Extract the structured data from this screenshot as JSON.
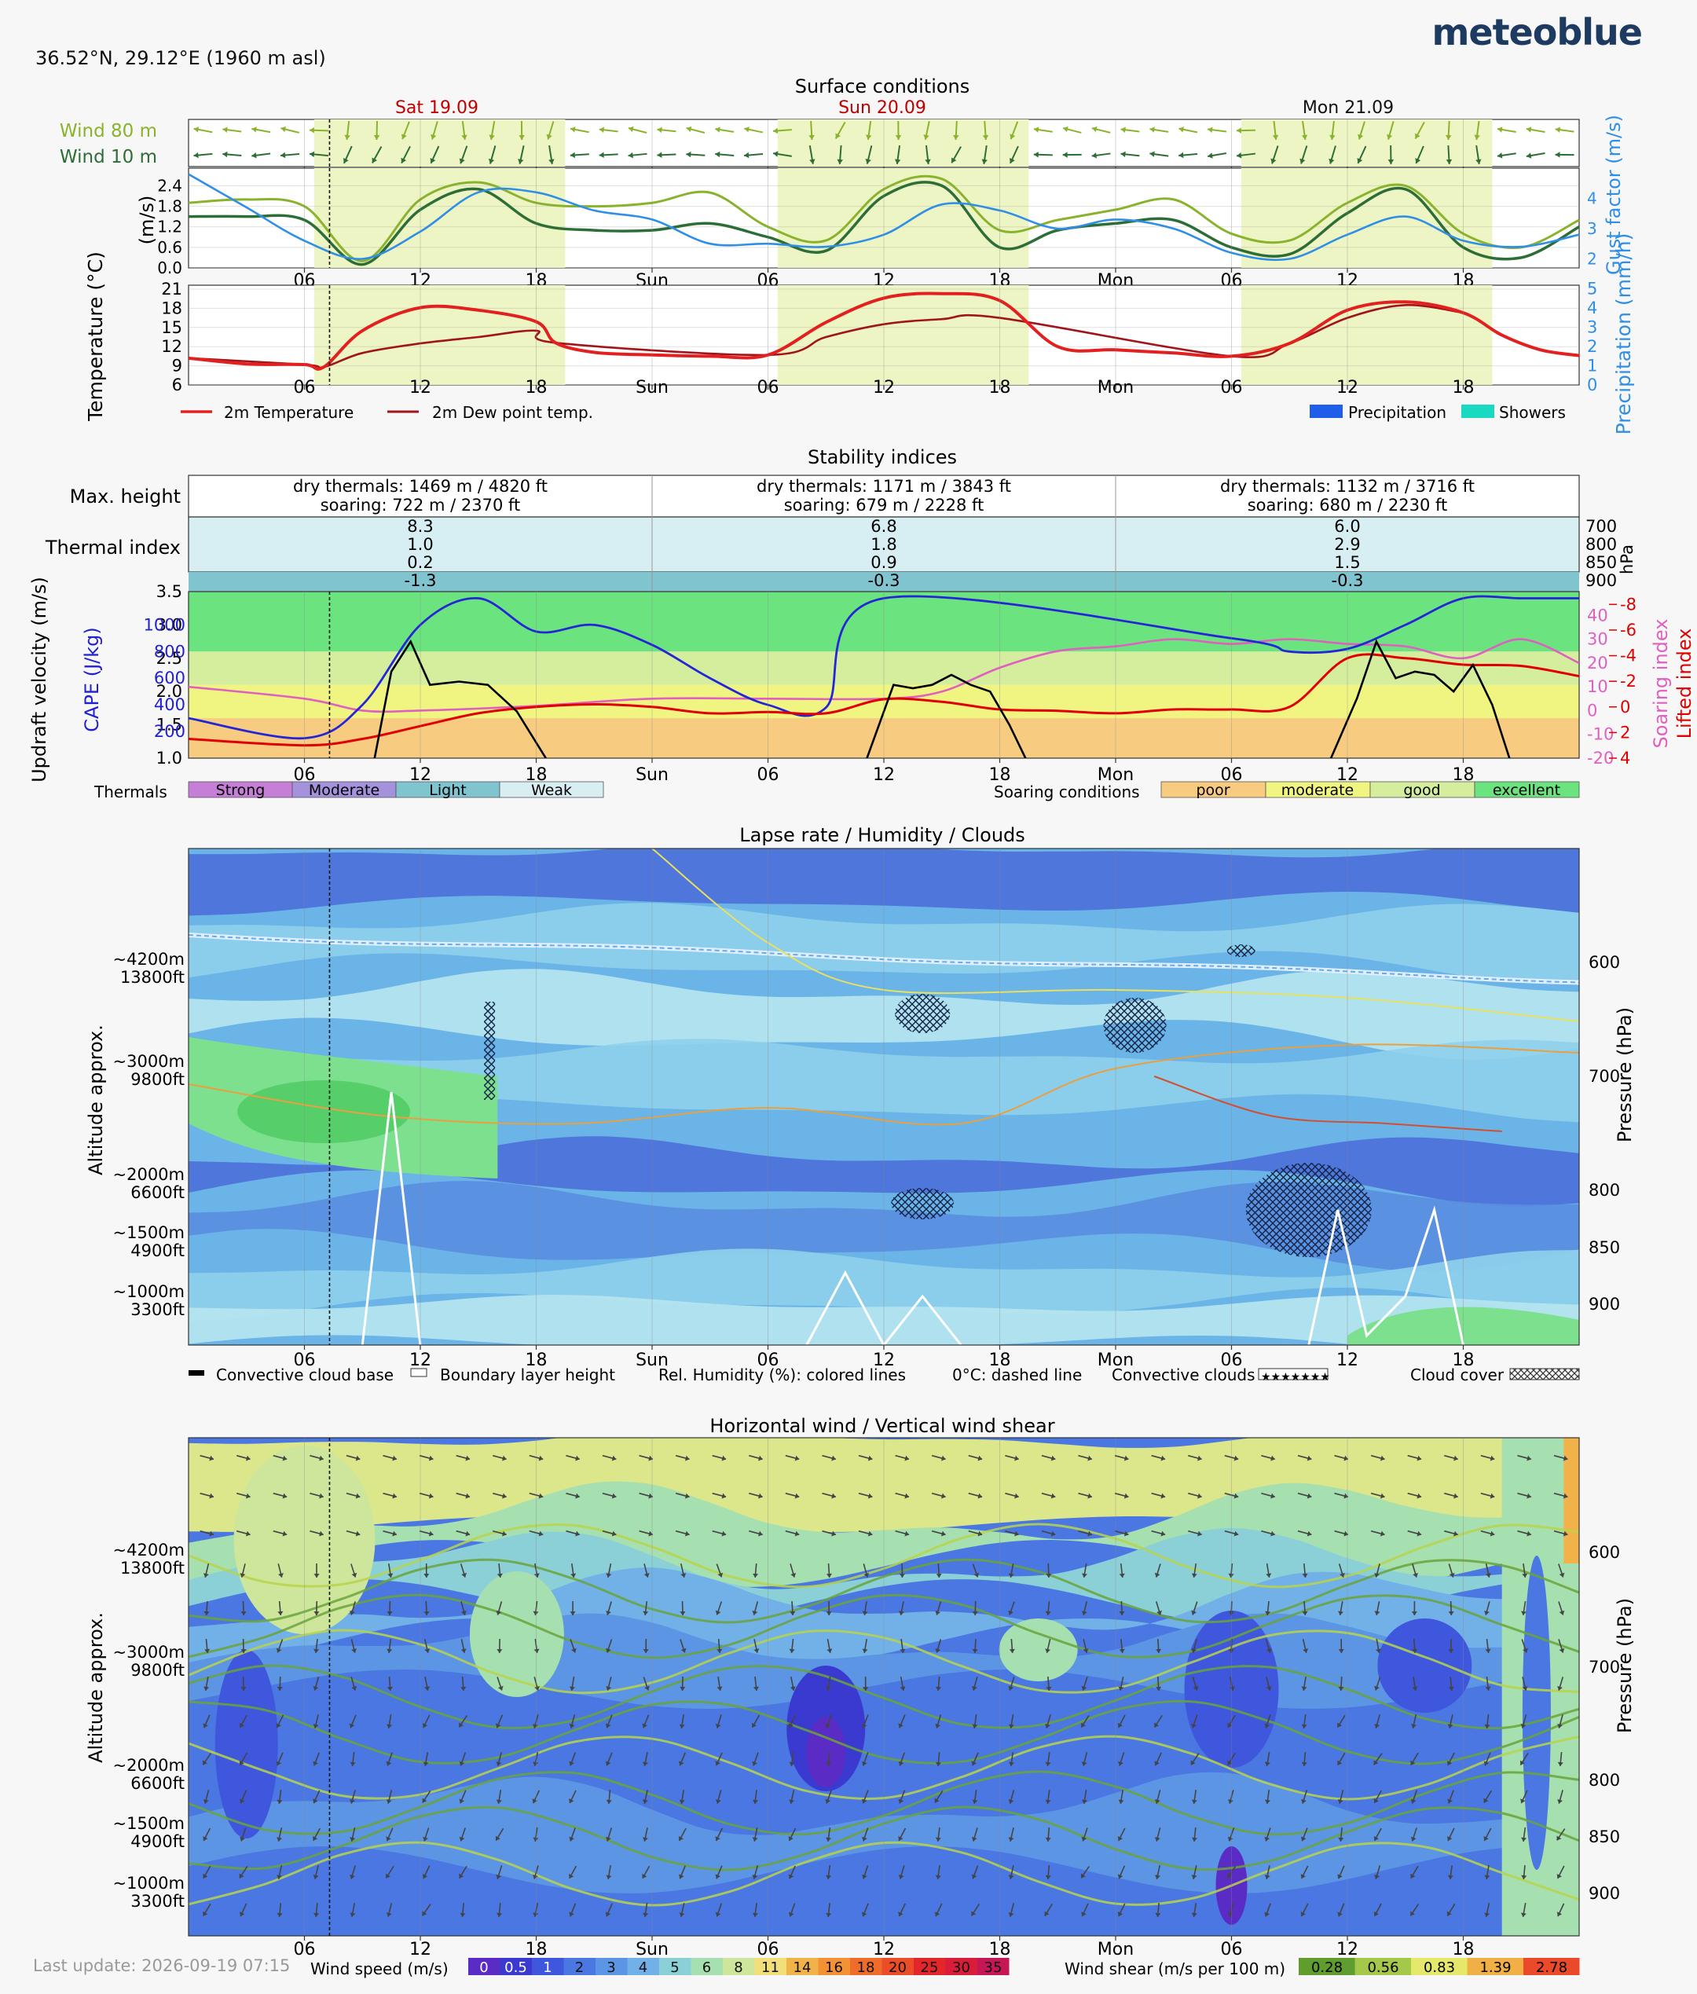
{
  "header": {
    "coordinates": "36.52°N, 29.12°E (1960 m asl)",
    "brand": "meteoblue",
    "last_update": "Last update: 2026-09-19 07:15"
  },
  "time_axis": {
    "ticks": [
      "06",
      "12",
      "18",
      "Sun",
      "06",
      "12",
      "18",
      "Mon",
      "06",
      "12",
      "18"
    ],
    "days": [
      "Sat 19.09",
      "Sun 20.09",
      "Mon 21.09"
    ],
    "day_colors": [
      "#c00000",
      "#c00000",
      "#111111"
    ],
    "hours_total": 72,
    "now_hour": 7.3,
    "daylight": [
      [
        6.5,
        19.5
      ],
      [
        30.5,
        43.5
      ],
      [
        54.5,
        67.5
      ]
    ]
  },
  "surface": {
    "title": "Surface conditions",
    "wind80_label": "Wind 80 m",
    "wind10_label": "Wind 10 m",
    "wind_left_label": "(m/s)",
    "wind_right_label": "Gust factor (m/s)",
    "wind_left_ticks": [
      "0.0",
      "0.6",
      "1.2",
      "1.8",
      "2.4"
    ],
    "wind_right_ticks": [
      "2",
      "3",
      "4"
    ],
    "temp_left_label": "Temperature (°C)",
    "temp_right_label": "Precipitation (mm/h)",
    "temp_ticks": [
      "6",
      "9",
      "12",
      "15",
      "18",
      "21"
    ],
    "precip_ticks": [
      "0",
      "1",
      "2",
      "3",
      "4",
      "5"
    ],
    "legend_temp": "2m Temperature",
    "legend_dew": "2m Dew point temp.",
    "legend_precip": "Precipitation",
    "legend_showers": "Showers",
    "colors": {
      "wind80": "#8ab32d",
      "wind10": "#2d6e36",
      "gust": "#2f8fe6",
      "temp": "#e32020",
      "dew": "#a0141a",
      "daylight": "#eef5c4",
      "precip": "#1e5ee8",
      "showers": "#19d9c0"
    }
  },
  "stability": {
    "title": "Stability indices",
    "max_height_label": "Max. height",
    "thermal_index_label": "Thermal index",
    "days": [
      {
        "dry": "dry thermals: 1469 m / 4820 ft",
        "soar": "soaring: 722 m / 2370 ft",
        "ti": [
          "8.3",
          "1.0",
          "0.2",
          "-1.3"
        ]
      },
      {
        "dry": "dry thermals: 1171 m / 3843 ft",
        "soar": "soaring: 679 m / 2228 ft",
        "ti": [
          "6.8",
          "1.8",
          "0.9",
          "-0.3"
        ]
      },
      {
        "dry": "dry thermals: 1132 m / 3716 ft",
        "soar": "soaring: 680 m / 2230 ft",
        "ti": [
          "6.0",
          "2.9",
          "1.5",
          "-0.3"
        ]
      }
    ],
    "hpa_ticks": [
      "700",
      "800",
      "850",
      "900"
    ],
    "hpa_label": "hPa",
    "updraft_label": "Updraft velocity (m/s)",
    "cape_label": "CAPE (J/kg)",
    "soaring_label": "Soaring index",
    "lifted_label": "Lifted index",
    "updraft_ticks": [
      "1.0",
      "1.5",
      "2.0",
      "2.5",
      "3.0",
      "3.5"
    ],
    "cape_ticks": [
      "200",
      "400",
      "600",
      "800",
      "1000"
    ],
    "soaring_ticks": [
      "-20",
      "-10",
      "0",
      "10",
      "20",
      "30",
      "40"
    ],
    "lifted_ticks": [
      "4",
      "2",
      "0",
      "-2",
      "-4",
      "-6",
      "-8"
    ],
    "thermals_label": "Thermals",
    "thermals_legend": [
      "Strong",
      "Moderate",
      "Light",
      "Weak"
    ],
    "thermals_colors": [
      "#c57fd6",
      "#a592dc",
      "#80c4cf",
      "#d9eef2"
    ],
    "soaring_cond_label": "Soaring conditions",
    "soaring_legend": [
      "poor",
      "moderate",
      "good",
      "excellent"
    ],
    "soaring_colors": [
      "#f7cc80",
      "#f0f581",
      "#d5ee9e",
      "#6be37e"
    ]
  },
  "lapse": {
    "title": "Lapse rate / Humidity / Clouds",
    "alt_label": "Altitude approx.",
    "pressure_label": "Pressure (hPa)",
    "alt_ticks": [
      [
        "~4200m",
        "13800ft"
      ],
      [
        "~3000m",
        "9800ft"
      ],
      [
        "~2000m",
        "6600ft"
      ],
      [
        "~1500m",
        "4900ft"
      ],
      [
        "~1000m",
        "3300ft"
      ]
    ],
    "pressure_ticks": [
      "600",
      "700",
      "800",
      "850",
      "900"
    ],
    "legend": [
      "Convective cloud base",
      "Boundary layer height",
      "Rel. Humidity (%): colored lines",
      "0°C: dashed line",
      "Convective clouds",
      "Cloud cover"
    ]
  },
  "wind": {
    "title": "Horizontal wind / Vertical wind shear",
    "speed_label": "Wind speed (m/s)",
    "shear_label": "Wind shear (m/s per 100 m)",
    "speed_scale": [
      "0",
      "0.5",
      "1",
      "2",
      "3",
      "4",
      "5",
      "6",
      "8",
      "11",
      "14",
      "16",
      "18",
      "20",
      "25",
      "30",
      "35"
    ],
    "speed_colors": [
      "#5a2cc5",
      "#3b3ad0",
      "#3f57dc",
      "#4a77e1",
      "#5c95e4",
      "#71b1e7",
      "#8ad0d6",
      "#a6dfb0",
      "#cde69b",
      "#f1e07a",
      "#f2b24a",
      "#f39133",
      "#ef6c2b",
      "#ea4d27",
      "#e3262a",
      "#d81c3a",
      "#c51656"
    ],
    "shear_scale": [
      "0.28",
      "0.56",
      "0.83",
      "1.39",
      "2.78"
    ],
    "shear_colors": [
      "#5f9d2f",
      "#a6c84a",
      "#e5e86a",
      "#f0b045",
      "#ea4a2a"
    ]
  },
  "chart_data": [
    {
      "type": "line",
      "title": "Surface conditions",
      "x_unit": "hours from Sat 19.09 00:00",
      "series": [
        {
          "name": "Wind 80 m",
          "x": [
            0,
            3,
            6,
            9,
            12,
            15,
            18,
            21,
            24,
            27,
            30,
            33,
            36,
            39,
            42,
            45,
            48,
            51,
            54,
            57,
            60,
            63,
            66,
            69,
            72
          ],
          "values": [
            1.9,
            2.0,
            1.8,
            0.2,
            2.0,
            2.5,
            1.9,
            1.8,
            1.9,
            2.2,
            1.2,
            0.8,
            2.3,
            2.6,
            1.1,
            1.4,
            1.7,
            2.0,
            1.0,
            0.8,
            1.9,
            2.4,
            1.0,
            0.6,
            1.4
          ]
        },
        {
          "name": "Wind 10 m",
          "x": [
            0,
            3,
            6,
            9,
            12,
            15,
            18,
            21,
            24,
            27,
            30,
            33,
            36,
            39,
            42,
            45,
            48,
            51,
            54,
            57,
            60,
            63,
            66,
            69,
            72
          ],
          "values": [
            1.5,
            1.5,
            1.4,
            0.1,
            1.7,
            2.3,
            1.3,
            1.1,
            1.1,
            1.3,
            0.9,
            0.5,
            2.1,
            2.4,
            0.6,
            1.1,
            1.3,
            1.4,
            0.6,
            0.4,
            1.6,
            2.3,
            0.6,
            0.3,
            1.2
          ]
        },
        {
          "name": "Gust factor",
          "x": [
            0,
            3,
            6,
            9,
            12,
            15,
            18,
            21,
            24,
            27,
            30,
            33,
            36,
            39,
            42,
            45,
            48,
            51,
            54,
            57,
            60,
            63,
            66,
            69,
            72
          ],
          "values": [
            4.8,
            3.7,
            2.6,
            2.0,
            2.9,
            4.2,
            4.2,
            3.6,
            3.3,
            2.5,
            2.5,
            2.4,
            2.8,
            3.8,
            3.6,
            3.0,
            3.3,
            3.0,
            2.2,
            2.0,
            2.8,
            3.4,
            2.6,
            2.4,
            2.8
          ]
        },
        {
          "name": "2m Temperature",
          "x": [
            0,
            3,
            6,
            7,
            9,
            12,
            15,
            18,
            19,
            21,
            24,
            27,
            30,
            33,
            36,
            39,
            42,
            45,
            48,
            51,
            54,
            57,
            60,
            63,
            66,
            68,
            70,
            72
          ],
          "values": [
            10.2,
            9.3,
            9.2,
            8.8,
            14.5,
            18.1,
            17.7,
            15.9,
            12.6,
            11.1,
            10.7,
            10.5,
            10.7,
            15.8,
            19.6,
            20.3,
            19.2,
            12.0,
            11.5,
            11.0,
            10.5,
            12.5,
            17.7,
            19.0,
            17.3,
            13.8,
            11.5,
            10.6
          ]
        },
        {
          "name": "2m Dew point temp.",
          "x": [
            0,
            6,
            7,
            9,
            12,
            15,
            18,
            19,
            30,
            33,
            36,
            39,
            42,
            54,
            57,
            60,
            63,
            66
          ],
          "values": [
            10.2,
            9.2,
            8.8,
            11.0,
            12.5,
            13.5,
            14.5,
            12.6,
            10.7,
            13.5,
            15.5,
            16.3,
            16.5,
            10.5,
            12.5,
            16.5,
            18.5,
            17.3
          ]
        }
      ]
    },
    {
      "type": "line",
      "title": "Stability indices",
      "series": [
        {
          "name": "CAPE",
          "x": [
            0,
            6,
            9,
            12,
            15,
            18,
            21,
            24,
            27,
            30,
            33,
            36,
            54,
            57,
            60,
            63,
            66,
            69,
            72
          ],
          "values": [
            300,
            150,
            400,
            1000,
            1200,
            950,
            1000,
            850,
            600,
            400,
            380,
            1200,
            900,
            800,
            820,
            1000,
            1200,
            1200,
            1200
          ]
        },
        {
          "name": "Lifted index",
          "x": [
            0,
            6,
            9,
            12,
            15,
            18,
            21,
            24,
            27,
            30,
            33,
            36,
            39,
            42,
            45,
            48,
            51,
            54,
            57,
            60,
            63,
            66,
            69,
            72
          ],
          "values": [
            2.5,
            3.0,
            2.5,
            1.5,
            0.5,
            0,
            -0.2,
            0,
            0.5,
            0.4,
            0.5,
            -0.6,
            -0.4,
            0.2,
            0.3,
            0.5,
            0.2,
            0.2,
            0,
            -3.8,
            -3.8,
            -3.3,
            -3.2,
            -2.4
          ]
        },
        {
          "name": "Soaring index",
          "x": [
            0,
            6,
            9,
            12,
            18,
            24,
            30,
            36,
            39,
            42,
            45,
            48,
            51,
            54,
            57,
            60,
            63,
            66,
            69,
            72
          ],
          "values": [
            10,
            5,
            0,
            0,
            2,
            5,
            5,
            5,
            8,
            18,
            25,
            27,
            30,
            28,
            30,
            28,
            27,
            22,
            30,
            20
          ]
        }
      ]
    }
  ]
}
